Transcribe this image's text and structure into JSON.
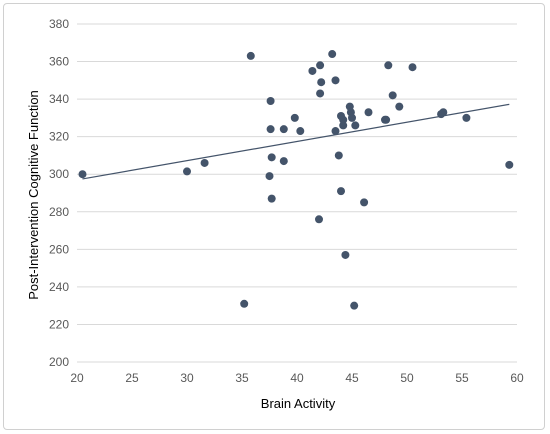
{
  "chart_data": {
    "type": "scatter",
    "xlabel": "Brain Activity",
    "ylabel": "Post-Intervention Cognitive Function",
    "xlim": [
      20,
      60
    ],
    "ylim": [
      200,
      380
    ],
    "x_ticks": [
      20,
      25,
      30,
      35,
      40,
      45,
      50,
      55,
      60
    ],
    "y_ticks": [
      200,
      220,
      240,
      260,
      280,
      300,
      320,
      340,
      360,
      380
    ],
    "grid": "horizontal",
    "legend": "none",
    "colors": {
      "marker": "#44546a",
      "trendline": "#44546a",
      "grid": "#d9d9d9"
    },
    "trendline": {
      "type": "linear",
      "x": [
        20.5,
        59.3
      ],
      "y": [
        297.5,
        337.2
      ]
    },
    "points": [
      {
        "x": 20.5,
        "y": 300
      },
      {
        "x": 30.0,
        "y": 301.5
      },
      {
        "x": 31.6,
        "y": 306
      },
      {
        "x": 35.2,
        "y": 231
      },
      {
        "x": 35.8,
        "y": 363
      },
      {
        "x": 37.5,
        "y": 299
      },
      {
        "x": 37.6,
        "y": 339
      },
      {
        "x": 37.6,
        "y": 324
      },
      {
        "x": 37.7,
        "y": 309
      },
      {
        "x": 37.7,
        "y": 287
      },
      {
        "x": 38.8,
        "y": 324
      },
      {
        "x": 38.8,
        "y": 307
      },
      {
        "x": 39.8,
        "y": 330
      },
      {
        "x": 40.3,
        "y": 323
      },
      {
        "x": 41.4,
        "y": 355
      },
      {
        "x": 42.0,
        "y": 276
      },
      {
        "x": 42.1,
        "y": 358
      },
      {
        "x": 42.1,
        "y": 343
      },
      {
        "x": 42.2,
        "y": 349
      },
      {
        "x": 43.2,
        "y": 364
      },
      {
        "x": 43.5,
        "y": 350
      },
      {
        "x": 43.5,
        "y": 323
      },
      {
        "x": 43.8,
        "y": 310
      },
      {
        "x": 44.0,
        "y": 291
      },
      {
        "x": 44.0,
        "y": 331
      },
      {
        "x": 44.2,
        "y": 329
      },
      {
        "x": 44.2,
        "y": 326
      },
      {
        "x": 44.4,
        "y": 257
      },
      {
        "x": 44.8,
        "y": 336
      },
      {
        "x": 44.9,
        "y": 333
      },
      {
        "x": 45.0,
        "y": 330
      },
      {
        "x": 45.2,
        "y": 230
      },
      {
        "x": 45.3,
        "y": 326
      },
      {
        "x": 46.1,
        "y": 285
      },
      {
        "x": 46.5,
        "y": 333
      },
      {
        "x": 48.0,
        "y": 329
      },
      {
        "x": 48.1,
        "y": 329
      },
      {
        "x": 48.3,
        "y": 358
      },
      {
        "x": 48.7,
        "y": 342
      },
      {
        "x": 49.3,
        "y": 336
      },
      {
        "x": 50.5,
        "y": 357
      },
      {
        "x": 53.1,
        "y": 332
      },
      {
        "x": 53.3,
        "y": 333
      },
      {
        "x": 55.4,
        "y": 330
      },
      {
        "x": 59.3,
        "y": 305
      }
    ]
  }
}
